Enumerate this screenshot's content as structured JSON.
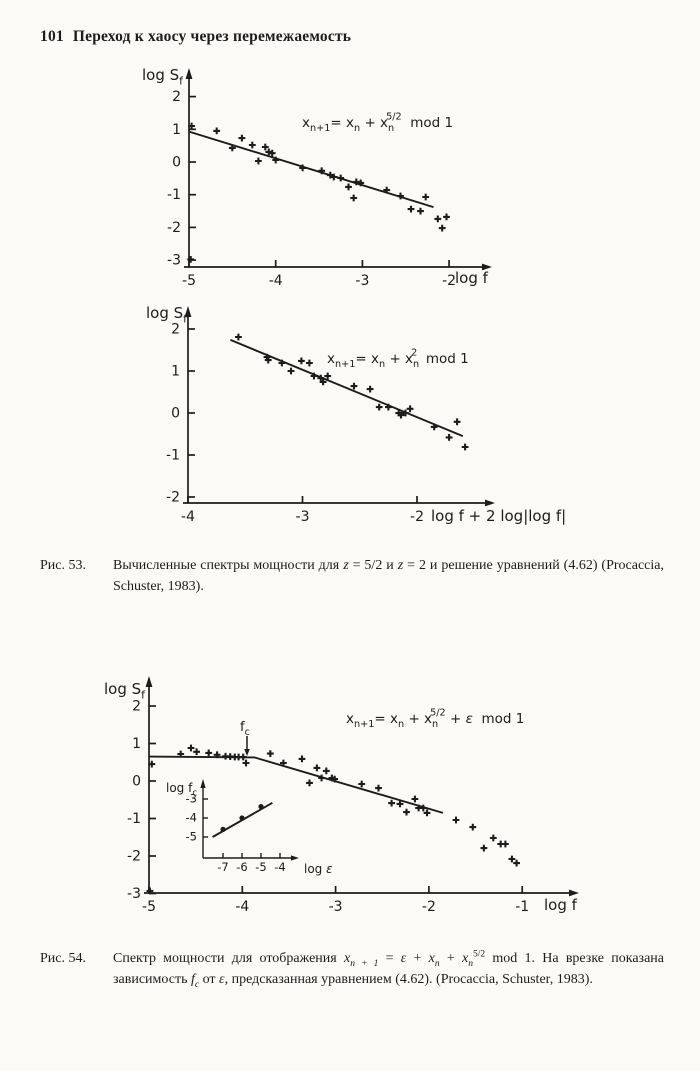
{
  "page": {
    "number": "101",
    "title": "Переход к хаосу через перемежаемость",
    "background": "#fbfaf7",
    "ink": "#1c1c1c"
  },
  "captions": [
    {
      "label": "Рис. 53.",
      "segments": [
        [
          "t",
          "Вычисленные спектры мощности для "
        ],
        [
          "i",
          "z"
        ],
        [
          "t",
          " = 5/2 и "
        ],
        [
          "i",
          "z"
        ],
        [
          "t",
          " = 2 и решение уравнений (4.62) (Procaccia, Schuster, 1983)."
        ]
      ]
    },
    {
      "label": "Рис. 54.",
      "segments": [
        [
          "t",
          "Спектр мощности для отображения "
        ],
        [
          "i",
          "x"
        ],
        [
          "isub",
          "n + 1"
        ],
        [
          "t",
          " = "
        ],
        [
          "i",
          "ε"
        ],
        [
          "t",
          " + "
        ],
        [
          "i",
          "x"
        ],
        [
          "isub",
          "n"
        ],
        [
          "t",
          " + "
        ],
        [
          "i",
          "x"
        ],
        [
          "isub",
          "n"
        ],
        [
          "sup",
          "5/2"
        ],
        [
          "t",
          " mod 1. На врезке показана зависимость "
        ],
        [
          "i",
          "f"
        ],
        [
          "isub",
          "c"
        ],
        [
          "t",
          " от "
        ],
        [
          "i",
          "ε"
        ],
        [
          "t",
          ", предсказанная уравнением (4.62). (Procaccia, Schuster, 1983)."
        ]
      ]
    }
  ],
  "chart_data": [
    {
      "id": "fig53-top-chart-z52",
      "type": "scatter",
      "equation": [
        [
          "t",
          "x"
        ],
        [
          "sub",
          "n+1"
        ],
        [
          "t",
          "= x"
        ],
        [
          "sub",
          "n"
        ],
        [
          "t",
          " + x"
        ],
        [
          "sub",
          "n"
        ],
        [
          "ssup",
          "5/2"
        ],
        [
          "t",
          "  mod 1"
        ]
      ],
      "xlabel": [
        [
          "t",
          "log f"
        ]
      ],
      "ylabel": [
        [
          "t",
          "log S"
        ],
        [
          "sub",
          "f"
        ]
      ],
      "x_ticks": [
        -5,
        -4,
        -3,
        -2
      ],
      "y_ticks": [
        2,
        1,
        0,
        -1,
        -2,
        -3
      ],
      "xlim": [
        -5,
        -1.6
      ],
      "ylim": [
        -3,
        2.4
      ],
      "points": [
        [
          -4.97,
          1.1
        ],
        [
          -4.68,
          0.95
        ],
        [
          -4.5,
          0.43
        ],
        [
          -4.39,
          0.73
        ],
        [
          -4.27,
          0.52
        ],
        [
          -4.2,
          0.03
        ],
        [
          -4.12,
          0.46
        ],
        [
          -4.08,
          0.31
        ],
        [
          -4.04,
          0.27
        ],
        [
          -4.0,
          0.06
        ],
        [
          -3.69,
          -0.18
        ],
        [
          -3.47,
          -0.27
        ],
        [
          -3.37,
          -0.4
        ],
        [
          -3.33,
          -0.46
        ],
        [
          -3.25,
          -0.49
        ],
        [
          -3.16,
          -0.76
        ],
        [
          -3.1,
          -1.1
        ],
        [
          -3.07,
          -0.61
        ],
        [
          -3.02,
          -0.64
        ],
        [
          -2.72,
          -0.86
        ],
        [
          -2.56,
          -1.04
        ],
        [
          -2.44,
          -1.44
        ],
        [
          -2.33,
          -1.5
        ],
        [
          -2.27,
          -1.07
        ],
        [
          -2.13,
          -1.74
        ],
        [
          -2.03,
          -1.68
        ],
        [
          -2.08,
          -2.02
        ],
        [
          -4.98,
          -2.98
        ]
      ],
      "fit_line": [
        [
          -5.0,
          0.93
        ],
        [
          -2.18,
          -1.38
        ]
      ]
    },
    {
      "id": "fig53-bottom-chart-z2",
      "type": "scatter",
      "equation": [
        [
          "t",
          "x"
        ],
        [
          "sub",
          "n+1"
        ],
        [
          "t",
          "= x"
        ],
        [
          "sub",
          "n"
        ],
        [
          "t",
          " + x"
        ],
        [
          "sub",
          "n"
        ],
        [
          "ssup",
          "2"
        ],
        [
          "t",
          "  mod 1"
        ]
      ],
      "xlabel": [
        [
          "t",
          "log f + 2 log|log f|"
        ]
      ],
      "ylabel": [
        [
          "t",
          "log S"
        ],
        [
          "sub",
          "f"
        ]
      ],
      "x_ticks": [
        -4,
        -3,
        -2
      ],
      "y_ticks": [
        2,
        1,
        0,
        -1,
        -2
      ],
      "xlim": [
        -4,
        -1.35
      ],
      "ylim": [
        -2,
        2.45
      ],
      "points": [
        [
          -3.56,
          1.81
        ],
        [
          -3.31,
          1.33
        ],
        [
          -3.3,
          1.26
        ],
        [
          -3.18,
          1.19
        ],
        [
          -3.1,
          1.0
        ],
        [
          -3.01,
          1.24
        ],
        [
          -2.94,
          1.19
        ],
        [
          -2.9,
          0.88
        ],
        [
          -2.84,
          0.83
        ],
        [
          -2.82,
          0.74
        ],
        [
          -2.78,
          0.88
        ],
        [
          -2.55,
          0.64
        ],
        [
          -2.41,
          0.57
        ],
        [
          -2.33,
          0.14
        ],
        [
          -2.25,
          0.14
        ],
        [
          -2.16,
          0.0
        ],
        [
          -2.14,
          -0.05
        ],
        [
          -2.1,
          0.0
        ],
        [
          -2.06,
          0.1
        ],
        [
          -1.85,
          -0.33
        ],
        [
          -1.72,
          -0.58
        ],
        [
          -1.65,
          -0.21
        ],
        [
          -1.58,
          -0.81
        ]
      ],
      "fit_line": [
        [
          -3.63,
          1.74
        ],
        [
          -1.6,
          -0.55
        ]
      ]
    },
    {
      "id": "fig54-chart",
      "type": "scatter",
      "equation": [
        [
          "t",
          "x"
        ],
        [
          "sub",
          "n+1"
        ],
        [
          "t",
          "= x"
        ],
        [
          "sub",
          "n"
        ],
        [
          "t",
          " + x"
        ],
        [
          "sub",
          "n"
        ],
        [
          "ssup",
          "5/2"
        ],
        [
          "t",
          " + "
        ],
        [
          "i",
          "ε"
        ],
        [
          "t",
          "  mod 1"
        ]
      ],
      "xlabel": [
        [
          "t",
          "log f"
        ]
      ],
      "ylabel": [
        [
          "t",
          "log S"
        ],
        [
          "sub",
          "f"
        ]
      ],
      "x_ticks": [
        -5,
        -4,
        -3,
        -2,
        -1
      ],
      "y_ticks": [
        2,
        1,
        0,
        -1,
        -2,
        -3
      ],
      "xlim": [
        -5,
        -0.4
      ],
      "ylim": [
        -3,
        2.8
      ],
      "points": [
        [
          -4.97,
          0.45
        ],
        [
          -4.66,
          0.72
        ],
        [
          -4.55,
          0.88
        ],
        [
          -4.49,
          0.78
        ],
        [
          -4.36,
          0.75
        ],
        [
          -4.27,
          0.7
        ],
        [
          -4.18,
          0.66
        ],
        [
          -4.13,
          0.65
        ],
        [
          -4.08,
          0.64
        ],
        [
          -4.04,
          0.64
        ],
        [
          -3.99,
          0.64
        ],
        [
          -3.96,
          0.48
        ],
        [
          -3.7,
          0.73
        ],
        [
          -3.56,
          0.48
        ],
        [
          -3.36,
          0.59
        ],
        [
          -3.28,
          -0.05
        ],
        [
          -3.2,
          0.35
        ],
        [
          -3.15,
          0.08
        ],
        [
          -3.1,
          0.27
        ],
        [
          -3.04,
          0.08
        ],
        [
          -3.01,
          0.05
        ],
        [
          -2.72,
          -0.08
        ],
        [
          -2.54,
          -0.19
        ],
        [
          -2.4,
          -0.59
        ],
        [
          -2.31,
          -0.61
        ],
        [
          -2.24,
          -0.83
        ],
        [
          -2.15,
          -0.48
        ],
        [
          -2.11,
          -0.72
        ],
        [
          -2.06,
          -0.72
        ],
        [
          -2.02,
          -0.85
        ],
        [
          -1.71,
          -1.04
        ],
        [
          -1.53,
          -1.23
        ],
        [
          -1.41,
          -1.79
        ],
        [
          -1.31,
          -1.52
        ],
        [
          -1.23,
          -1.68
        ],
        [
          -1.18,
          -1.68
        ],
        [
          -1.11,
          -2.08
        ],
        [
          -1.06,
          -2.19
        ],
        [
          -4.99,
          -2.93
        ]
      ],
      "fit_line": [
        [
          -5.0,
          0.65
        ],
        [
          -3.87,
          0.63
        ],
        [
          -1.85,
          -0.85
        ]
      ],
      "annotation": {
        "label": [
          [
            "t",
            "f"
          ],
          [
            "sub",
            "c"
          ]
        ],
        "x": -3.95,
        "y_from": 1.2,
        "y_to": 0.8
      },
      "inset": {
        "id": "fig54-inset-fc-vs-eps",
        "type": "scatter",
        "xlabel": [
          [
            "t",
            "log "
          ],
          [
            "i",
            "ε"
          ]
        ],
        "ylabel": [
          [
            "t",
            "log f"
          ],
          [
            "sub",
            "c"
          ]
        ],
        "x_ticks": [
          -7,
          -6,
          -5,
          -4
        ],
        "y_ticks": [
          -3,
          -4,
          -5
        ],
        "xlim": [
          -7.8,
          -3.5
        ],
        "ylim": [
          -5.6,
          -2.6
        ],
        "points": [
          [
            -7,
            -4.6
          ],
          [
            -6,
            -4.0
          ],
          [
            -5,
            -3.4
          ]
        ],
        "fit_line": [
          [
            -7.55,
            -5.0
          ],
          [
            -4.4,
            -3.2
          ]
        ]
      }
    }
  ]
}
